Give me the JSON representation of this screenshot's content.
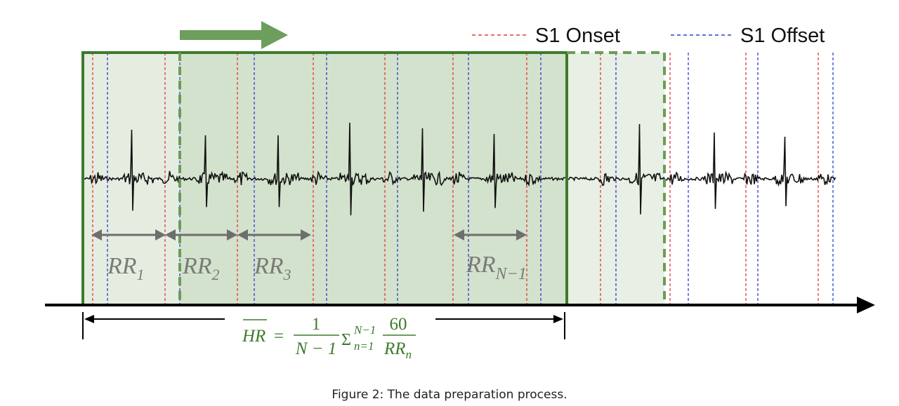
{
  "legend": {
    "onset_label": "S1 Onset",
    "offset_label": "S1 Offset",
    "onset_color": "#e03c3c",
    "offset_color": "#2f3fcf"
  },
  "rr_labels": [
    {
      "base": "RR",
      "sub": "1"
    },
    {
      "base": "RR",
      "sub": "2"
    },
    {
      "base": "RR",
      "sub": "3"
    },
    {
      "base": "RR",
      "sub": "N−1"
    }
  ],
  "formula": {
    "lhs": "HR",
    "equals": "=",
    "frac_num": "1",
    "frac_den": "N − 1",
    "sigma": "Σ",
    "sigma_sup": "N−1",
    "sigma_sub": "n=1",
    "frac2_num": "60",
    "frac2_den_base": "RR",
    "frac2_den_sub": "n"
  },
  "caption": "Figure 2: The data preparation process.",
  "colors": {
    "window": "#3d7a2c",
    "window_fill": "#c8d9c0",
    "window_fill_light": "#e3ecdf",
    "axis": "#000000",
    "arrow_gray": "#6e6e6e",
    "slide_arrow": "#6e9e5e"
  }
}
